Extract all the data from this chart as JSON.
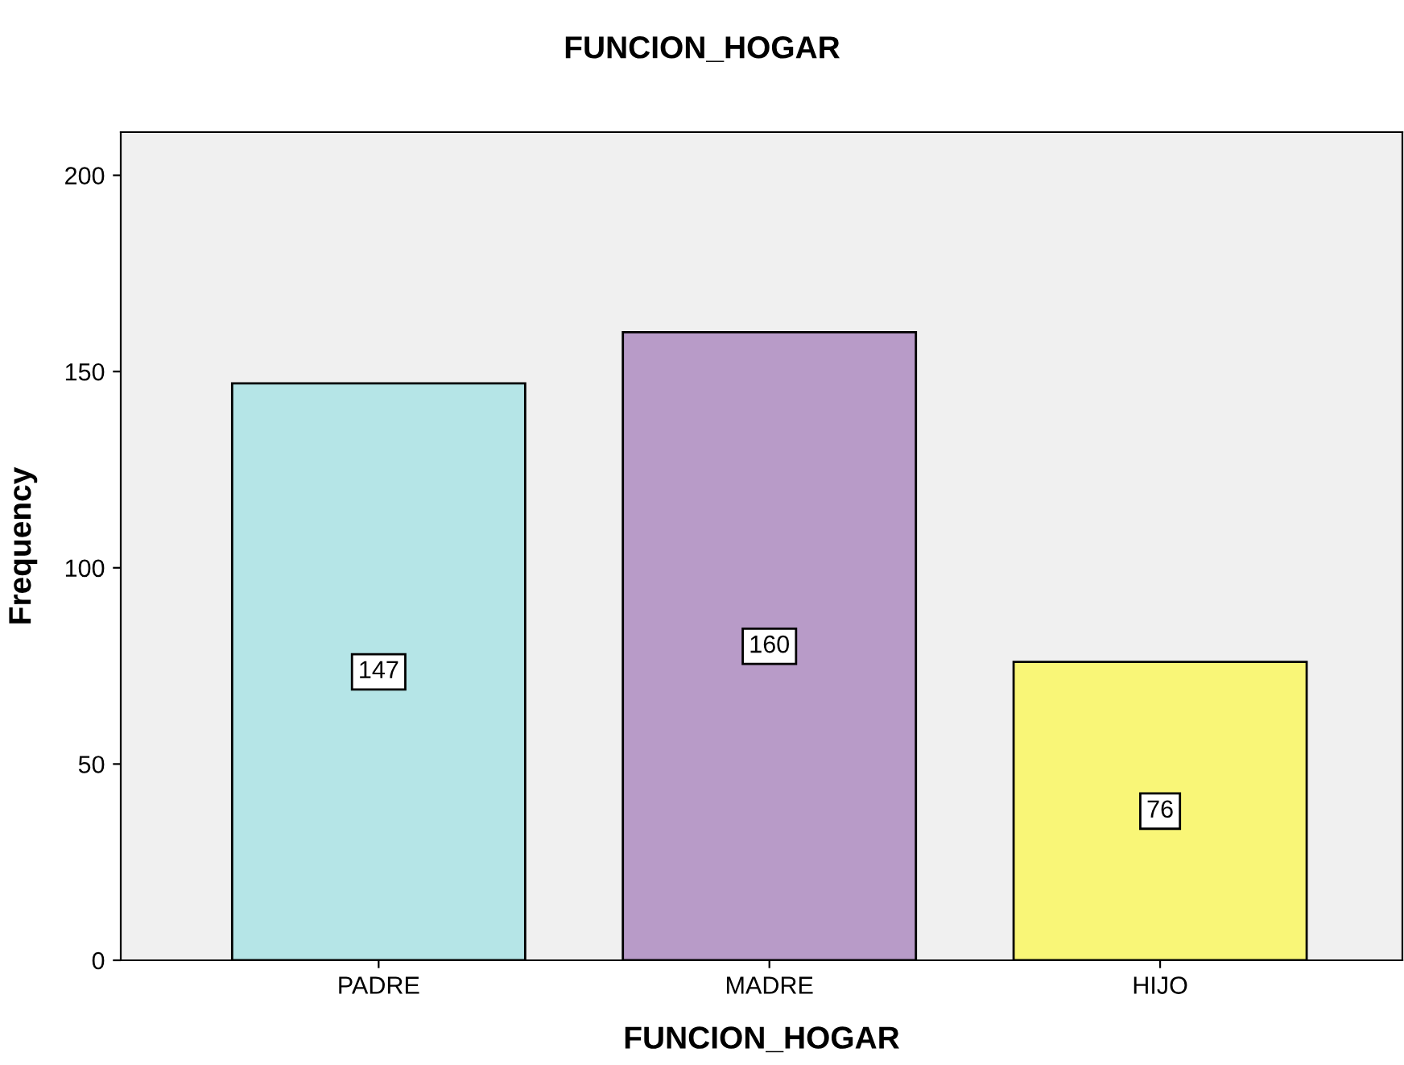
{
  "chart_data": {
    "type": "bar",
    "title": "FUNCION_HOGAR",
    "xlabel": "FUNCION_HOGAR",
    "ylabel": "Frequency",
    "categories": [
      "PADRE",
      "MADRE",
      "HIJO"
    ],
    "values": [
      147,
      160,
      76
    ],
    "colors": [
      "#b5e5e7",
      "#b89bc8",
      "#f9f677"
    ],
    "ylim": [
      0,
      211
    ],
    "yticks": [
      0,
      50,
      100,
      150,
      200
    ],
    "grid": false,
    "data_labels": true
  }
}
